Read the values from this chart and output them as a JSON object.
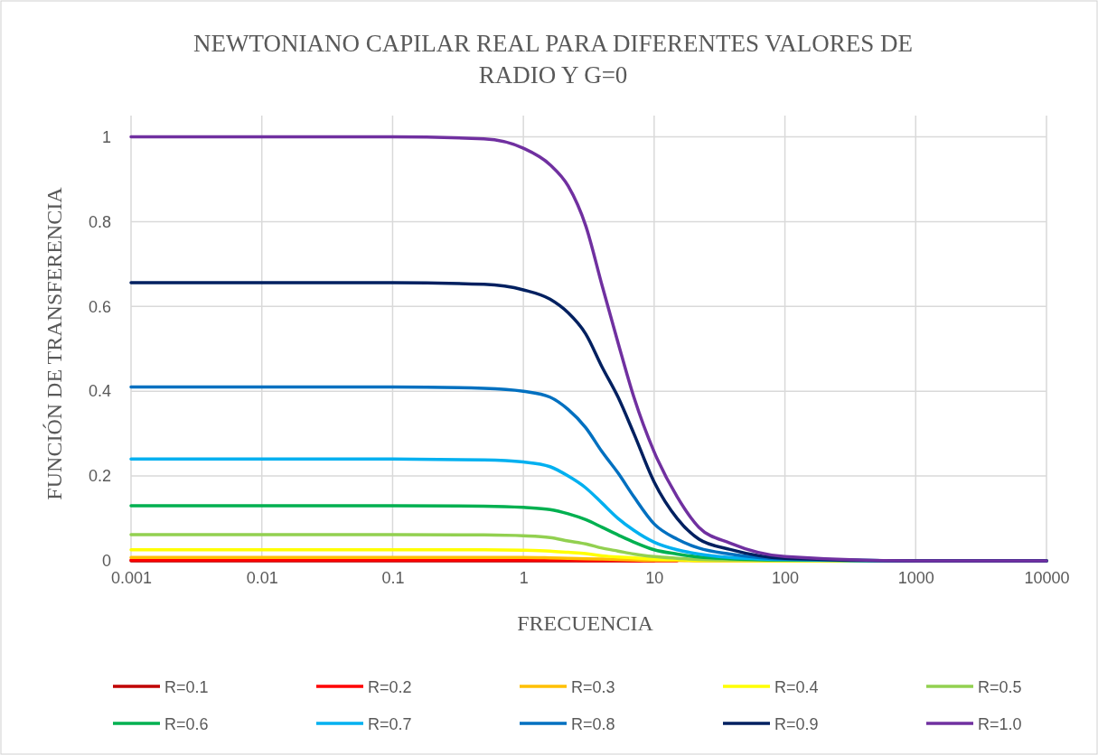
{
  "chart_data": {
    "type": "line",
    "title": "NEWTONIANO CAPILAR REAL PARA DIFERENTES VALORES DE RADIO Y G=0",
    "xlabel": "FRECUENCIA",
    "ylabel": "FUNCIÓN DE TRANSFERENCIA",
    "log": "x",
    "grid": true,
    "legend": "bottom",
    "marker": "none",
    "line_style": "solid",
    "xlim": [
      0.001,
      10000
    ],
    "xticks": [
      0.001,
      0.01,
      0.1,
      1,
      10,
      100,
      1000,
      10000
    ],
    "ylim": [
      0,
      1.05
    ],
    "yticks": [
      0,
      0.2,
      0.4,
      0.6,
      0.8,
      1
    ],
    "x": [
      0.001,
      0.01,
      0.1,
      0.5,
      1,
      1.6,
      2.2,
      3,
      4,
      5.3,
      7,
      10,
      15,
      22,
      38,
      100,
      1000,
      10000
    ],
    "series": [
      {
        "name": "R=0.1",
        "color": "#c00000",
        "values": [
          0,
          0,
          0,
          0,
          0,
          0,
          0,
          0,
          0,
          0,
          0,
          0,
          null,
          null,
          null,
          null,
          null,
          null
        ]
      },
      {
        "name": "R=0.2",
        "color": "#ff0000",
        "values": [
          0.002,
          0.002,
          0.002,
          0.002,
          0.002,
          0.002,
          0.002,
          0.001,
          0.001,
          0.001,
          0,
          0,
          0,
          null,
          null,
          null,
          null,
          null
        ]
      },
      {
        "name": "R=0.3",
        "color": "#ffc000",
        "values": [
          0.008,
          0.008,
          0.008,
          0.008,
          0.008,
          0.007,
          0.006,
          0.005,
          0.004,
          0.003,
          0.002,
          0.001,
          0.001,
          0,
          0,
          0,
          0,
          0
        ]
      },
      {
        "name": "R=0.4",
        "color": "#ffff00",
        "values": [
          0.026,
          0.026,
          0.026,
          0.026,
          0.025,
          0.023,
          0.02,
          0.017,
          0.012,
          0.009,
          0.007,
          0.004,
          0.003,
          0.001,
          0.001,
          0,
          0,
          0
        ]
      },
      {
        "name": "R=0.5",
        "color": "#92d050",
        "values": [
          0.062,
          0.062,
          0.062,
          0.061,
          0.059,
          0.055,
          0.047,
          0.04,
          0.03,
          0.023,
          0.016,
          0.01,
          0.006,
          0.003,
          0.002,
          0.001,
          0,
          0
        ]
      },
      {
        "name": "R=0.6",
        "color": "#00b050",
        "values": [
          0.13,
          0.13,
          0.13,
          0.129,
          0.126,
          0.121,
          0.111,
          0.097,
          0.079,
          0.061,
          0.044,
          0.026,
          0.016,
          0.009,
          0.005,
          0.002,
          0,
          0
        ]
      },
      {
        "name": "R=0.7",
        "color": "#00b0f0",
        "values": [
          0.24,
          0.24,
          0.24,
          0.238,
          0.233,
          0.222,
          0.2,
          0.172,
          0.136,
          0.1,
          0.072,
          0.044,
          0.026,
          0.016,
          0.008,
          0.003,
          0,
          0
        ]
      },
      {
        "name": "R=0.8",
        "color": "#0070c0",
        "values": [
          0.41,
          0.41,
          0.41,
          0.407,
          0.4,
          0.386,
          0.357,
          0.314,
          0.257,
          0.207,
          0.151,
          0.087,
          0.051,
          0.03,
          0.016,
          0.004,
          0,
          0
        ]
      },
      {
        "name": "R=0.9",
        "color": "#002060",
        "values": [
          0.656,
          0.656,
          0.656,
          0.652,
          0.639,
          0.617,
          0.585,
          0.535,
          0.457,
          0.386,
          0.3,
          0.186,
          0.1,
          0.051,
          0.027,
          0.006,
          0,
          0
        ]
      },
      {
        "name": "R=1.0",
        "color": "#7030a0",
        "values": [
          1,
          1,
          1,
          0.995,
          0.973,
          0.934,
          0.884,
          0.79,
          0.649,
          0.514,
          0.386,
          0.257,
          0.151,
          0.079,
          0.042,
          0.01,
          0,
          0
        ]
      }
    ]
  }
}
